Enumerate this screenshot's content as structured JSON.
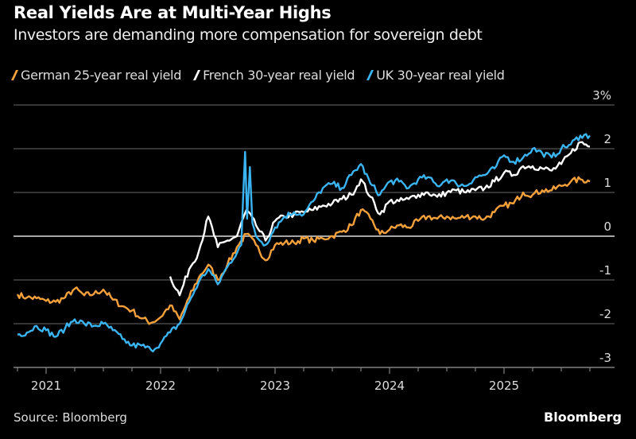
{
  "chart_data": {
    "type": "line",
    "title": "Real Yields Are at Multi-Year Highs",
    "subtitle": "Investors are demanding more compensation for sovereign debt",
    "source": "Source: Bloomberg",
    "brand": "Bloomberg",
    "y_axis": {
      "position": "right",
      "ylim": [
        -3,
        3
      ],
      "ticks": [
        3,
        2,
        1,
        0,
        -1,
        -2,
        -3
      ],
      "tick_labels": [
        "3%",
        "2",
        "1",
        "0",
        "-1",
        "-2",
        "-3"
      ],
      "grid": true
    },
    "x_axis": {
      "range": [
        "2020-10",
        "2025-10"
      ],
      "tick_labels": [
        "2021",
        "2022",
        "2023",
        "2024",
        "2025"
      ]
    },
    "legend_position": "top-left",
    "series": [
      {
        "name": "German 25-year real yield",
        "color": "#f5a03a",
        "points": [
          [
            "2020-10",
            -1.33
          ],
          [
            "2020-11",
            -1.4
          ],
          [
            "2020-12",
            -1.42
          ],
          [
            "2021-01",
            -1.48
          ],
          [
            "2021-02",
            -1.5
          ],
          [
            "2021-03",
            -1.4
          ],
          [
            "2021-04",
            -1.2
          ],
          [
            "2021-05",
            -1.35
          ],
          [
            "2021-06",
            -1.32
          ],
          [
            "2021-07",
            -1.22
          ],
          [
            "2021-08",
            -1.45
          ],
          [
            "2021-09",
            -1.6
          ],
          [
            "2021-10",
            -1.7
          ],
          [
            "2021-11",
            -1.88
          ],
          [
            "2021-12",
            -1.98
          ],
          [
            "2022-01",
            -1.85
          ],
          [
            "2022-02",
            -1.58
          ],
          [
            "2022-03",
            -1.9
          ],
          [
            "2022-04",
            -1.4
          ],
          [
            "2022-05",
            -0.95
          ],
          [
            "2022-06",
            -0.65
          ],
          [
            "2022-07",
            -1.0
          ],
          [
            "2022-08",
            -0.65
          ],
          [
            "2022-09",
            -0.25
          ],
          [
            "2022-10",
            0.05
          ],
          [
            "2022-11",
            -0.2
          ],
          [
            "2022-12",
            -0.55
          ],
          [
            "2023-01",
            -0.2
          ],
          [
            "2023-02",
            -0.15
          ],
          [
            "2023-03",
            -0.15
          ],
          [
            "2023-04",
            -0.05
          ],
          [
            "2023-05",
            -0.1
          ],
          [
            "2023-06",
            -0.05
          ],
          [
            "2023-07",
            0.0
          ],
          [
            "2023-08",
            0.1
          ],
          [
            "2023-09",
            0.25
          ],
          [
            "2023-10",
            0.6
          ],
          [
            "2023-11",
            0.4
          ],
          [
            "2023-12",
            0.05
          ],
          [
            "2024-01",
            0.15
          ],
          [
            "2024-02",
            0.25
          ],
          [
            "2024-03",
            0.2
          ],
          [
            "2024-04",
            0.35
          ],
          [
            "2024-05",
            0.45
          ],
          [
            "2024-06",
            0.4
          ],
          [
            "2024-07",
            0.45
          ],
          [
            "2024-08",
            0.4
          ],
          [
            "2024-09",
            0.45
          ],
          [
            "2024-10",
            0.45
          ],
          [
            "2024-11",
            0.4
          ],
          [
            "2024-12",
            0.55
          ],
          [
            "2025-01",
            0.7
          ],
          [
            "2025-02",
            0.75
          ],
          [
            "2025-03",
            1.0
          ],
          [
            "2025-04",
            0.95
          ],
          [
            "2025-05",
            1.05
          ],
          [
            "2025-06",
            1.05
          ],
          [
            "2025-07",
            1.15
          ],
          [
            "2025-08",
            1.25
          ],
          [
            "2025-09",
            1.3
          ],
          [
            "2025-10",
            1.25
          ]
        ]
      },
      {
        "name": "French 30-year real yield",
        "color": "#ffffff",
        "points": [
          [
            "2022-02",
            -0.92
          ],
          [
            "2022-03",
            -1.35
          ],
          [
            "2022-04",
            -0.75
          ],
          [
            "2022-05",
            -0.35
          ],
          [
            "2022-06",
            0.45
          ],
          [
            "2022-07",
            -0.25
          ],
          [
            "2022-08",
            -0.1
          ],
          [
            "2022-09",
            0.0
          ],
          [
            "2022-10",
            0.6
          ],
          [
            "2022-11",
            0.25
          ],
          [
            "2022-12",
            -0.1
          ],
          [
            "2023-01",
            0.35
          ],
          [
            "2023-02",
            0.45
          ],
          [
            "2023-03",
            0.5
          ],
          [
            "2023-04",
            0.55
          ],
          [
            "2023-05",
            0.6
          ],
          [
            "2023-06",
            0.7
          ],
          [
            "2023-07",
            0.75
          ],
          [
            "2023-08",
            0.85
          ],
          [
            "2023-09",
            0.95
          ],
          [
            "2023-10",
            1.3
          ],
          [
            "2023-11",
            0.9
          ],
          [
            "2023-12",
            0.5
          ],
          [
            "2024-01",
            0.8
          ],
          [
            "2024-02",
            0.8
          ],
          [
            "2024-03",
            0.85
          ],
          [
            "2024-04",
            0.95
          ],
          [
            "2024-05",
            1.0
          ],
          [
            "2024-06",
            0.9
          ],
          [
            "2024-07",
            1.0
          ],
          [
            "2024-08",
            1.05
          ],
          [
            "2024-09",
            1.0
          ],
          [
            "2024-10",
            1.05
          ],
          [
            "2024-11",
            1.1
          ],
          [
            "2024-12",
            1.25
          ],
          [
            "2025-01",
            1.45
          ],
          [
            "2025-02",
            1.4
          ],
          [
            "2025-03",
            1.6
          ],
          [
            "2025-04",
            1.6
          ],
          [
            "2025-05",
            1.55
          ],
          [
            "2025-06",
            1.5
          ],
          [
            "2025-07",
            1.65
          ],
          [
            "2025-08",
            1.9
          ],
          [
            "2025-09",
            2.15
          ],
          [
            "2025-10",
            2.05
          ]
        ]
      },
      {
        "name": "UK 30-year real yield",
        "color": "#3ab4f2",
        "points": [
          [
            "2020-10",
            -2.25
          ],
          [
            "2020-11",
            -2.2
          ],
          [
            "2020-12",
            -2.05
          ],
          [
            "2021-01",
            -2.15
          ],
          [
            "2021-02",
            -2.3
          ],
          [
            "2021-03",
            -2.1
          ],
          [
            "2021-04",
            -1.9
          ],
          [
            "2021-05",
            -2.0
          ],
          [
            "2021-06",
            -2.05
          ],
          [
            "2021-07",
            -2.0
          ],
          [
            "2021-08",
            -2.15
          ],
          [
            "2021-09",
            -2.35
          ],
          [
            "2021-10",
            -2.5
          ],
          [
            "2021-11",
            -2.5
          ],
          [
            "2021-12",
            -2.6
          ],
          [
            "2022-01",
            -2.45
          ],
          [
            "2022-02",
            -2.2
          ],
          [
            "2022-03",
            -2.0
          ],
          [
            "2022-04",
            -1.5
          ],
          [
            "2022-05",
            -1.05
          ],
          [
            "2022-06",
            -0.75
          ],
          [
            "2022-07",
            -1.1
          ],
          [
            "2022-08",
            -0.7
          ],
          [
            "2022-09-15",
            -0.2
          ],
          [
            "2022-09-27",
            1.93
          ],
          [
            "2022-10-03",
            0.4
          ],
          [
            "2022-10-12",
            1.58
          ],
          [
            "2022-10-20",
            0.3
          ],
          [
            "2022-11",
            0.0
          ],
          [
            "2022-12",
            -0.2
          ],
          [
            "2023-01",
            0.2
          ],
          [
            "2023-02",
            0.45
          ],
          [
            "2023-03",
            0.55
          ],
          [
            "2023-04",
            0.5
          ],
          [
            "2023-05",
            0.8
          ],
          [
            "2023-06",
            1.1
          ],
          [
            "2023-07",
            1.2
          ],
          [
            "2023-08",
            1.1
          ],
          [
            "2023-09",
            1.4
          ],
          [
            "2023-10",
            1.65
          ],
          [
            "2023-11",
            1.2
          ],
          [
            "2023-12",
            0.95
          ],
          [
            "2024-01",
            1.25
          ],
          [
            "2024-02",
            1.25
          ],
          [
            "2024-03",
            1.1
          ],
          [
            "2024-04",
            1.3
          ],
          [
            "2024-05",
            1.35
          ],
          [
            "2024-06",
            1.15
          ],
          [
            "2024-07",
            1.3
          ],
          [
            "2024-08",
            1.2
          ],
          [
            "2024-09",
            1.15
          ],
          [
            "2024-10",
            1.35
          ],
          [
            "2024-11",
            1.4
          ],
          [
            "2024-12",
            1.55
          ],
          [
            "2025-01",
            1.85
          ],
          [
            "2025-02",
            1.7
          ],
          [
            "2025-03",
            1.8
          ],
          [
            "2025-04",
            2.0
          ],
          [
            "2025-05",
            1.9
          ],
          [
            "2025-06",
            1.8
          ],
          [
            "2025-07",
            2.0
          ],
          [
            "2025-08",
            2.1
          ],
          [
            "2025-09",
            2.3
          ],
          [
            "2025-10",
            2.3
          ]
        ]
      }
    ]
  }
}
